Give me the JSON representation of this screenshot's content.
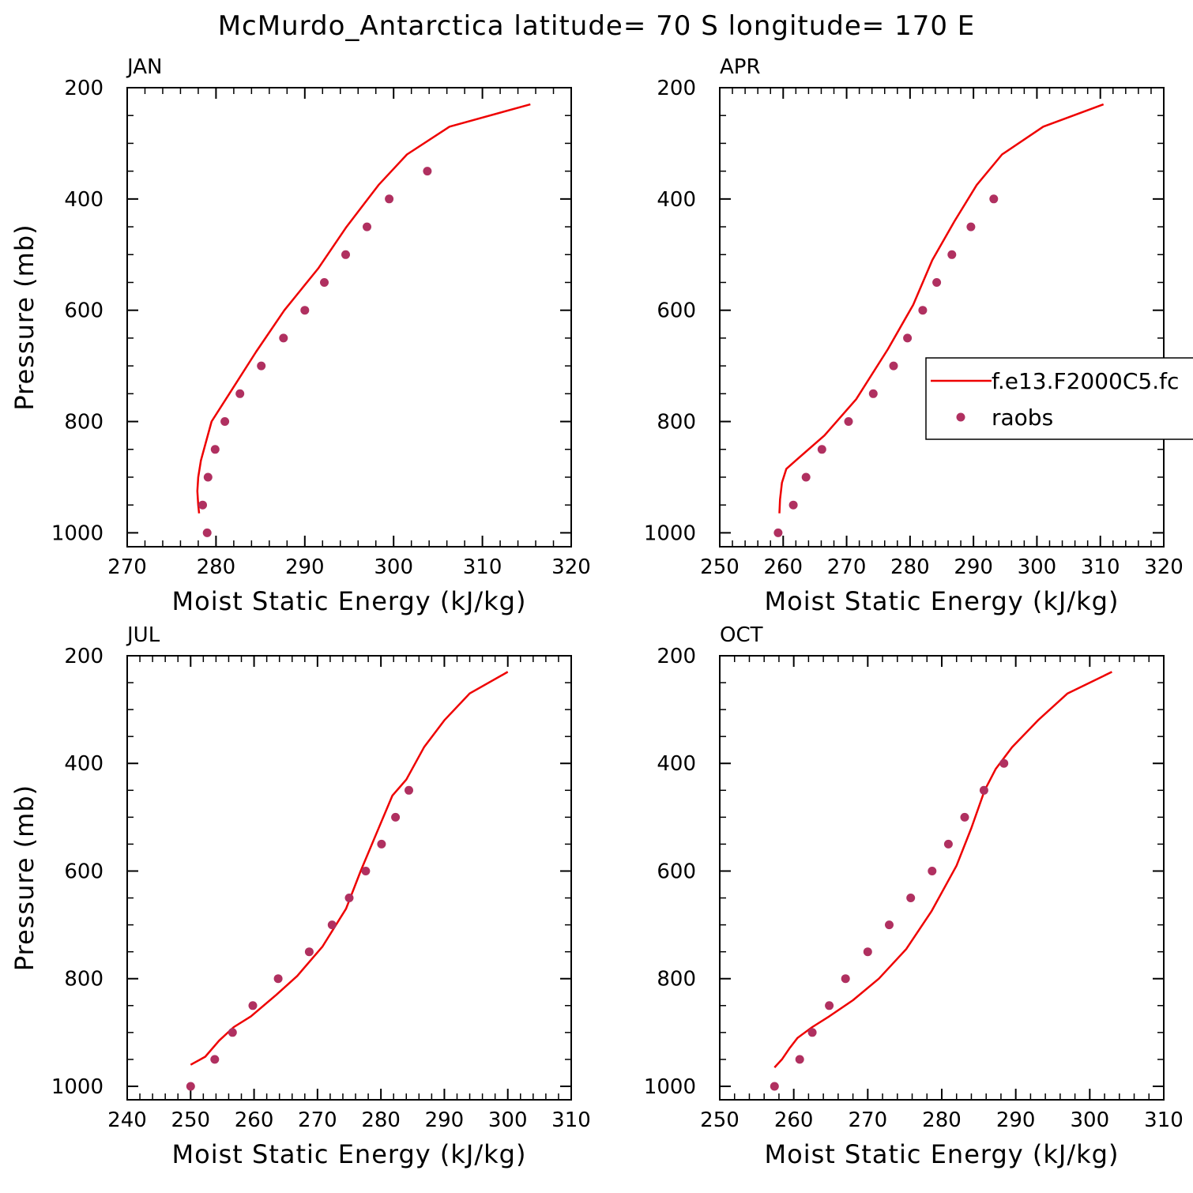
{
  "title": "McMurdo_Antarctica  latitude= 70 S longitude= 170 E",
  "colors": {
    "model": "#ee0000",
    "obs": "#b03060",
    "axis": "#000000"
  },
  "legend": {
    "model_label": "f.e13.F2000C5.fc",
    "obs_label": "raobs",
    "placement": "right of APR panel"
  },
  "chart_data": [
    {
      "type": "line+scatter",
      "panel": "JAN",
      "xlabel": "Moist Static Energy (kJ/kg)",
      "ylabel": "Pressure (mb)",
      "xlim": [
        270,
        320
      ],
      "ylim": [
        200,
        1025
      ],
      "xticks": [
        270,
        280,
        290,
        300,
        310,
        320
      ],
      "yticks": [
        200,
        400,
        600,
        800,
        1000
      ],
      "series": [
        {
          "name": "f.e13.F2000C5.fc",
          "kind": "line",
          "x": [
            278.1,
            278.0,
            277.9,
            278.0,
            278.3,
            279.5,
            281.5,
            284.5,
            287.7,
            291.5,
            294.7,
            298.3,
            301.5,
            306.3,
            315.4
          ],
          "y": [
            965,
            950,
            925,
            900,
            870,
            800,
            750,
            675,
            600,
            525,
            450,
            375,
            320,
            270,
            230
          ]
        },
        {
          "name": "raobs",
          "kind": "scatter",
          "x": [
            279.0,
            278.5,
            279.1,
            279.9,
            281.0,
            282.7,
            285.1,
            287.6,
            290.0,
            292.2,
            294.6,
            297.0,
            299.5,
            303.8
          ],
          "y": [
            1000,
            950,
            900,
            850,
            800,
            750,
            700,
            650,
            600,
            550,
            500,
            450,
            400,
            350
          ]
        }
      ]
    },
    {
      "type": "line+scatter",
      "panel": "APR",
      "xlabel": "Moist Static Energy (kJ/kg)",
      "ylabel": "",
      "xlim": [
        250,
        320
      ],
      "ylim": [
        200,
        1025
      ],
      "xticks": [
        250,
        260,
        270,
        280,
        290,
        300,
        310,
        320
      ],
      "yticks": [
        200,
        400,
        600,
        800,
        1000
      ],
      "series": [
        {
          "name": "f.e13.F2000C5.fc",
          "kind": "line",
          "x": [
            259.4,
            259.5,
            259.8,
            260.5,
            262.0,
            266.5,
            271.5,
            276.5,
            280.5,
            283.5,
            287.0,
            290.5,
            294.5,
            301.0,
            310.5
          ],
          "y": [
            965,
            940,
            910,
            885,
            870,
            825,
            760,
            670,
            590,
            510,
            440,
            375,
            320,
            270,
            230
          ]
        },
        {
          "name": "raobs",
          "kind": "scatter",
          "x": [
            259.2,
            261.6,
            263.6,
            266.1,
            270.3,
            274.2,
            277.4,
            279.6,
            282.0,
            284.2,
            286.6,
            289.6,
            293.2
          ],
          "y": [
            1000,
            950,
            900,
            850,
            800,
            750,
            700,
            650,
            600,
            550,
            500,
            450,
            400
          ]
        }
      ]
    },
    {
      "type": "line+scatter",
      "panel": "JUL",
      "xlabel": "Moist Static Energy (kJ/kg)",
      "ylabel": "Pressure (mb)",
      "xlim": [
        240,
        310
      ],
      "ylim": [
        200,
        1025
      ],
      "xticks": [
        240,
        250,
        260,
        270,
        280,
        290,
        300,
        310
      ],
      "yticks": [
        200,
        400,
        600,
        800,
        1000
      ],
      "series": [
        {
          "name": "f.e13.F2000C5.fc",
          "kind": "line",
          "x": [
            250.0,
            252.3,
            254.5,
            256.8,
            259.5,
            263.5,
            266.8,
            270.8,
            274.5,
            276.8,
            279.3,
            281.8,
            284.0,
            286.8,
            290.0,
            294.0,
            300.0
          ],
          "y": [
            960,
            945,
            915,
            890,
            870,
            830,
            795,
            740,
            670,
            600,
            530,
            460,
            430,
            370,
            320,
            270,
            230
          ]
        },
        {
          "name": "raobs",
          "kind": "scatter",
          "x": [
            250.0,
            253.8,
            256.6,
            259.8,
            263.8,
            268.7,
            272.3,
            275.0,
            277.6,
            280.1,
            282.3,
            284.4
          ],
          "y": [
            1000,
            950,
            900,
            850,
            800,
            750,
            700,
            650,
            600,
            550,
            500,
            450
          ]
        }
      ]
    },
    {
      "type": "line+scatter",
      "panel": "OCT",
      "xlabel": "Moist Static Energy (kJ/kg)",
      "ylabel": "",
      "xlim": [
        250,
        310
      ],
      "ylim": [
        200,
        1025
      ],
      "xticks": [
        250,
        260,
        270,
        280,
        290,
        300,
        310
      ],
      "yticks": [
        200,
        400,
        600,
        800,
        1000
      ],
      "series": [
        {
          "name": "f.e13.F2000C5.fc",
          "kind": "line",
          "x": [
            257.4,
            258.4,
            259.4,
            260.5,
            262.5,
            264.8,
            268.0,
            271.5,
            275.2,
            278.6,
            282.0,
            284.0,
            285.8,
            287.3,
            289.5,
            293.0,
            297.0,
            303.0
          ],
          "y": [
            965,
            950,
            930,
            910,
            890,
            870,
            840,
            800,
            745,
            675,
            590,
            520,
            450,
            410,
            370,
            320,
            270,
            230
          ]
        },
        {
          "name": "raobs",
          "kind": "scatter",
          "x": [
            257.4,
            260.8,
            262.5,
            264.8,
            267.0,
            270.0,
            272.9,
            275.8,
            278.7,
            280.9,
            283.1,
            285.7,
            288.4
          ],
          "y": [
            1000,
            950,
            900,
            850,
            800,
            750,
            700,
            650,
            600,
            550,
            500,
            450,
            400
          ]
        }
      ]
    }
  ]
}
